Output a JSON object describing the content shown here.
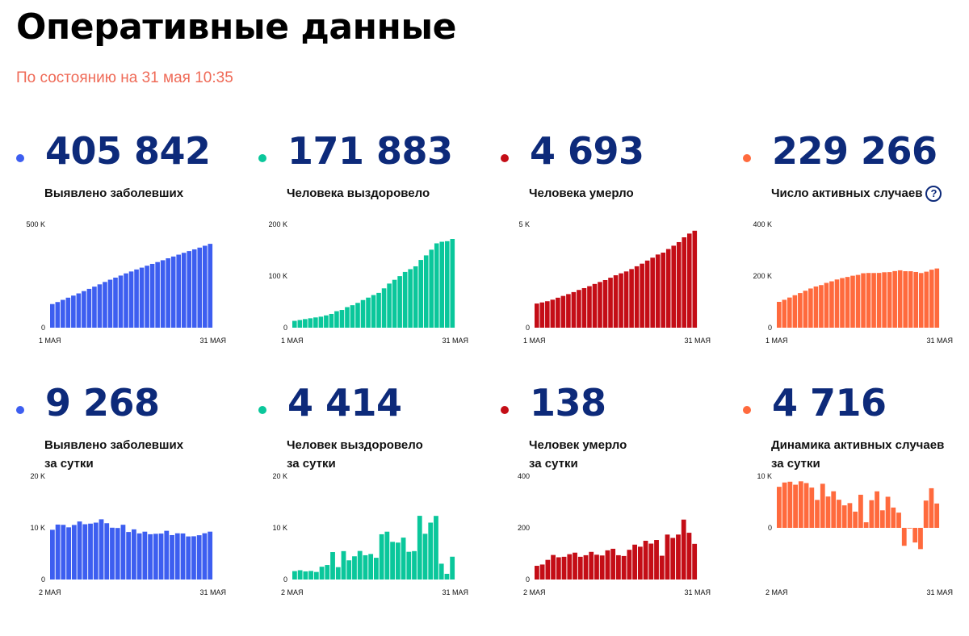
{
  "page": {
    "title": "Оперативные данные",
    "subtitle": "По состоянию на 31 мая 10:35"
  },
  "colors": {
    "blue": "#3d5ef0",
    "green": "#0ac79b",
    "red": "#c40d16",
    "orange": "#ff6a3d",
    "number": "#0d2a7a",
    "subtitle": "#ef6a57"
  },
  "icons": {
    "help": "question-circle-icon"
  },
  "help_mark": "?",
  "cards": [
    {
      "value": "405 842",
      "label": [
        "Выявлено заболевших"
      ],
      "color": "blue"
    },
    {
      "value": "171 883",
      "label": [
        "Человека выздоровело"
      ],
      "color": "green"
    },
    {
      "value": "4 693",
      "label": [
        "Человека умерло"
      ],
      "color": "red"
    },
    {
      "value": "229 266",
      "label": [
        "Число активных случаев"
      ],
      "color": "orange",
      "help": true
    },
    {
      "value": "9 268",
      "label": [
        "Выявлено заболевших",
        "за сутки"
      ],
      "color": "blue"
    },
    {
      "value": "4 414",
      "label": [
        "Человек выздоровело",
        "за сутки"
      ],
      "color": "green"
    },
    {
      "value": "138",
      "label": [
        "Человек умерло",
        "за сутки"
      ],
      "color": "red"
    },
    {
      "value": "4 716",
      "label": [
        "Динамика активных случаев",
        "за сутки"
      ],
      "color": "orange"
    }
  ],
  "chart_data": [
    {
      "type": "bar",
      "color": "blue",
      "xlabels": [
        "1 МАЯ",
        "31 МАЯ"
      ],
      "yticks": [
        {
          "label": "500 K",
          "v": 500000
        },
        {
          "label": "0",
          "v": 0
        }
      ],
      "ylim": [
        0,
        500000
      ],
      "values": [
        114431,
        124054,
        134687,
        145268,
        155370,
        165929,
        177160,
        187859,
        198676,
        209688,
        221344,
        232243,
        242271,
        252245,
        262843,
        272043,
        281752,
        290678,
        299941,
        308705,
        317554,
        326448,
        335882,
        344481,
        353427,
        362342,
        370680,
        379051,
        387623,
        396575,
        405842
      ]
    },
    {
      "type": "bar",
      "color": "green",
      "xlabels": [
        "1 МАЯ",
        "31 МАЯ"
      ],
      "yticks": [
        {
          "label": "200 K",
          "v": 200000
        },
        {
          "label": "100 K",
          "v": 100000
        },
        {
          "label": "0",
          "v": 0
        }
      ],
      "ylim": [
        0,
        200000
      ],
      "values": [
        13220,
        14844,
        16639,
        18209,
        19865,
        21327,
        23803,
        26608,
        31916,
        34306,
        39801,
        43512,
        48003,
        53530,
        58226,
        63166,
        67373,
        76130,
        85392,
        92681,
        99825,
        107936,
        113299,
        118798,
        131129,
        139979,
        150993,
        163306,
        166367,
        167469,
        171883
      ]
    },
    {
      "type": "bar",
      "color": "red",
      "xlabels": [
        "1 МАЯ",
        "31 МАЯ"
      ],
      "yticks": [
        {
          "label": "5 K",
          "v": 5000
        },
        {
          "label": "0",
          "v": 0
        }
      ],
      "ylim": [
        0,
        5000
      ],
      "values": [
        1169,
        1222,
        1280,
        1356,
        1451,
        1537,
        1625,
        1723,
        1827,
        1915,
        2009,
        2116,
        2212,
        2305,
        2418,
        2537,
        2631,
        2722,
        2837,
        2972,
        3099,
        3249,
        3388,
        3541,
        3633,
        3807,
        3968,
        4142,
        4374,
        4555,
        4693
      ]
    },
    {
      "type": "bar",
      "color": "orange",
      "xlabels": [
        "1 МАЯ",
        "31 МАЯ"
      ],
      "yticks": [
        {
          "label": "400 K",
          "v": 400000
        },
        {
          "label": "200 K",
          "v": 200000
        },
        {
          "label": "0",
          "v": 0
        }
      ],
      "ylim": [
        0,
        400000
      ],
      "values": [
        100042,
        107988,
        116768,
        125703,
        134054,
        143065,
        151732,
        159528,
        164933,
        173467,
        179534,
        186615,
        192056,
        196410,
        201199,
        204340,
        210748,
        211826,
        211712,
        212052,
        214630,
        215263,
        219195,
        222142,
        218665,
        218556,
        215719,
        211603,
        216882,
        224551,
        229266
      ]
    },
    {
      "type": "bar",
      "color": "blue",
      "xlabels": [
        "2 МАЯ",
        "31 МАЯ"
      ],
      "yticks": [
        {
          "label": "20 K",
          "v": 20000
        },
        {
          "label": "10 K",
          "v": 10000
        },
        {
          "label": "0",
          "v": 0
        }
      ],
      "ylim": [
        0,
        20000
      ],
      "values": [
        9623,
        10633,
        10581,
        10102,
        10559,
        11231,
        10699,
        10817,
        11012,
        11656,
        10899,
        10028,
        9974,
        10598,
        9200,
        9709,
        8926,
        9263,
        8764,
        8849,
        8894,
        9434,
        8599,
        8946,
        8915,
        8338,
        8371,
        8572,
        8952,
        9268
      ]
    },
    {
      "type": "bar",
      "color": "green",
      "xlabels": [
        "2 МАЯ",
        "31 МАЯ"
      ],
      "yticks": [
        {
          "label": "20 K",
          "v": 20000
        },
        {
          "label": "10 K",
          "v": 10000
        },
        {
          "label": "0",
          "v": 0
        }
      ],
      "ylim": [
        0,
        20000
      ],
      "values": [
        1624,
        1795,
        1570,
        1656,
        1462,
        2476,
        2805,
        5308,
        2390,
        5495,
        3711,
        4491,
        5527,
        4696,
        4940,
        4207,
        8757,
        9262,
        7289,
        7144,
        8111,
        5363,
        5499,
        12331,
        8850,
        11014,
        12313,
        3061,
        1102,
        4414
      ]
    },
    {
      "type": "bar",
      "color": "red",
      "xlabels": [
        "2 МАЯ",
        "31 МАЯ"
      ],
      "yticks": [
        {
          "label": "400",
          "v": 400
        },
        {
          "label": "200",
          "v": 200
        },
        {
          "label": "0",
          "v": 0
        }
      ],
      "ylim": [
        0,
        400
      ],
      "values": [
        53,
        58,
        76,
        95,
        86,
        88,
        98,
        104,
        88,
        94,
        107,
        96,
        93,
        113,
        119,
        94,
        91,
        115,
        135,
        127,
        150,
        139,
        153,
        92,
        174,
        161,
        174,
        232,
        181,
        138
      ]
    },
    {
      "type": "bar",
      "color": "orange",
      "xlabels": [
        "2 МАЯ",
        "31 МАЯ"
      ],
      "yticks": [
        {
          "label": "10 K",
          "v": 10000
        },
        {
          "label": "0",
          "v": 0
        }
      ],
      "ylim": [
        -10000,
        10000
      ],
      "values": [
        7946,
        8780,
        8935,
        8351,
        9011,
        8667,
        7796,
        5405,
        8534,
        6067,
        7081,
        5441,
        4354,
        4789,
        3141,
        6408,
        1078,
        5352,
        7070,
        3393,
        6022,
        3932,
        2947,
        -3477,
        -109,
        -2837,
        -4116,
        5279,
        7669,
        4716
      ]
    }
  ]
}
